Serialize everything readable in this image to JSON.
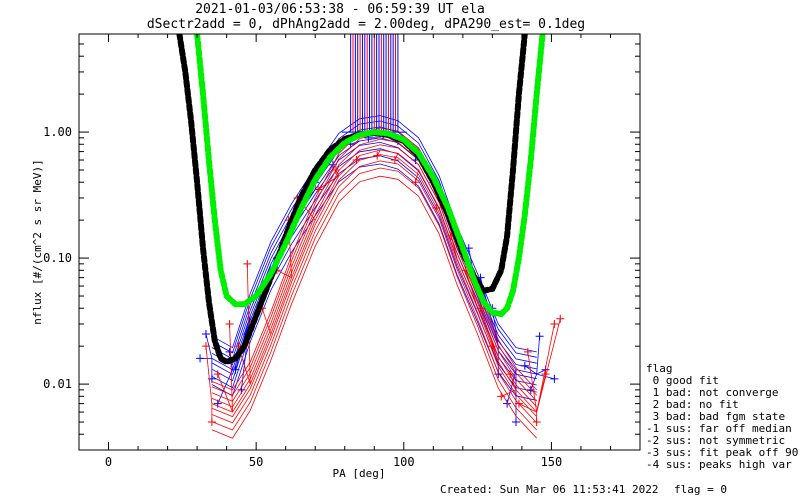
{
  "chart_data": {
    "type": "scatter",
    "title_line1": "2021-01-03/06:53:38 - 06:59:39 UT ela",
    "title_line2": "dSectr2add = 0, dPhAng2add = 2.00deg, dPA290_est=   0.1deg",
    "xlabel": "PA [deg]",
    "ylabel": "nflux [#/(cm^2 s sr MeV)]",
    "x_scale": "linear",
    "y_scale": "log",
    "xlim": [
      -10,
      180
    ],
    "ylim": [
      0.003,
      6
    ],
    "x_ticks": [
      {
        "value": 0,
        "label": "0"
      },
      {
        "value": 50,
        "label": "50"
      },
      {
        "value": 100,
        "label": "100"
      },
      {
        "value": 150,
        "label": "150"
      }
    ],
    "y_ticks": [
      {
        "value": 0.01,
        "label": "0.01"
      },
      {
        "value": 0.1,
        "label": "0.10"
      },
      {
        "value": 1.0,
        "label": "1.00"
      }
    ],
    "grid": false,
    "series": [
      {
        "color": "#0000ff",
        "marker": "plus-lines",
        "curve": {
          "x": [
            35,
            42,
            48,
            55,
            62,
            70,
            78,
            85,
            92,
            98,
            105,
            112,
            118,
            125,
            132,
            138,
            145
          ],
          "y": [
            0.016,
            0.013,
            0.035,
            0.09,
            0.18,
            0.35,
            0.65,
            0.85,
            0.9,
            0.82,
            0.6,
            0.3,
            0.12,
            0.05,
            0.02,
            0.013,
            0.012
          ]
        },
        "markers_x": [
          31,
          33,
          35,
          37,
          41,
          43,
          45,
          47,
          53,
          57,
          62,
          65,
          70,
          76,
          82,
          88,
          93,
          98,
          104,
          110,
          114,
          118,
          122,
          126,
          130,
          132,
          135,
          138,
          141,
          143,
          146,
          148,
          151
        ],
        "markers_y": [
          0.016,
          0.025,
          0.011,
          0.007,
          0.018,
          0.013,
          0.009,
          0.025,
          0.06,
          0.1,
          0.17,
          0.25,
          0.4,
          0.55,
          0.8,
          0.9,
          0.95,
          0.85,
          0.6,
          0.4,
          0.25,
          0.15,
          0.12,
          0.07,
          0.04,
          0.012,
          0.007,
          0.005,
          0.014,
          0.009,
          0.024,
          0.013,
          0.011
        ]
      },
      {
        "color": "#ff0000",
        "marker": "plus-lines",
        "curve": {
          "x": [
            35,
            42,
            48,
            55,
            62,
            70,
            78,
            85,
            92,
            98,
            105,
            112,
            118,
            125,
            132,
            138,
            145
          ],
          "y": [
            0.007,
            0.006,
            0.01,
            0.025,
            0.07,
            0.2,
            0.45,
            0.65,
            0.72,
            0.68,
            0.5,
            0.25,
            0.1,
            0.04,
            0.015,
            0.009,
            0.006
          ]
        },
        "markers_x": [
          33,
          35,
          37,
          41,
          44,
          47,
          52,
          57,
          61,
          64,
          71,
          77,
          84,
          91,
          97,
          104,
          111,
          116,
          121,
          126,
          130,
          133,
          136,
          139,
          142,
          145,
          148,
          151,
          153
        ],
        "markers_y": [
          0.02,
          0.005,
          0.012,
          0.03,
          0.02,
          0.09,
          0.04,
          0.08,
          0.2,
          0.3,
          0.35,
          0.5,
          0.6,
          0.65,
          0.6,
          0.4,
          0.25,
          0.15,
          0.08,
          0.04,
          0.02,
          0.008,
          0.012,
          0.007,
          0.018,
          0.005,
          0.012,
          0.03,
          0.033
        ]
      },
      {
        "color": "#000000",
        "marker": "thick-dashed",
        "x": [
          24,
          26,
          28,
          30,
          32,
          34,
          36,
          38,
          40,
          43,
          46,
          50,
          55,
          60,
          65,
          70,
          75,
          80,
          85,
          90,
          95,
          100,
          105,
          110,
          115,
          120,
          124,
          127,
          130,
          133,
          135,
          137,
          139,
          141
        ],
        "y": [
          6.0,
          3.0,
          1.2,
          0.4,
          0.12,
          0.045,
          0.022,
          0.016,
          0.015,
          0.016,
          0.02,
          0.035,
          0.07,
          0.15,
          0.3,
          0.5,
          0.72,
          0.88,
          0.96,
          0.98,
          0.95,
          0.85,
          0.65,
          0.4,
          0.22,
          0.11,
          0.07,
          0.055,
          0.057,
          0.08,
          0.15,
          0.5,
          2.0,
          6.0
        ]
      },
      {
        "color": "#00ee00",
        "marker": "thick-dashed",
        "x": [
          30,
          32,
          34,
          36,
          38,
          40,
          43,
          46,
          50,
          55,
          60,
          65,
          70,
          75,
          80,
          85,
          90,
          95,
          100,
          105,
          110,
          115,
          120,
          124,
          127,
          130,
          133,
          135,
          137,
          139,
          141,
          143,
          145,
          147
        ],
        "y": [
          6.0,
          2.0,
          0.6,
          0.2,
          0.08,
          0.05,
          0.043,
          0.043,
          0.05,
          0.075,
          0.13,
          0.24,
          0.42,
          0.63,
          0.82,
          0.95,
          1.0,
          0.97,
          0.87,
          0.68,
          0.44,
          0.25,
          0.12,
          0.065,
          0.045,
          0.037,
          0.036,
          0.04,
          0.055,
          0.1,
          0.22,
          0.6,
          2.0,
          6.0
        ]
      }
    ]
  },
  "legend": {
    "title": "flag",
    "items": [
      " 0 good fit",
      " 1 bad: not converge",
      " 2 bad: no fit",
      " 3 bad: bad fgm state",
      "-1 sus: far off median",
      "-2 sus: not symmetric",
      "-3 sus: fit peak off 90",
      "-4 sus: peaks high var"
    ]
  },
  "footer": {
    "created": "Created: Sun Mar 06 11:53:41 2022",
    "flag": "flag = 0"
  }
}
